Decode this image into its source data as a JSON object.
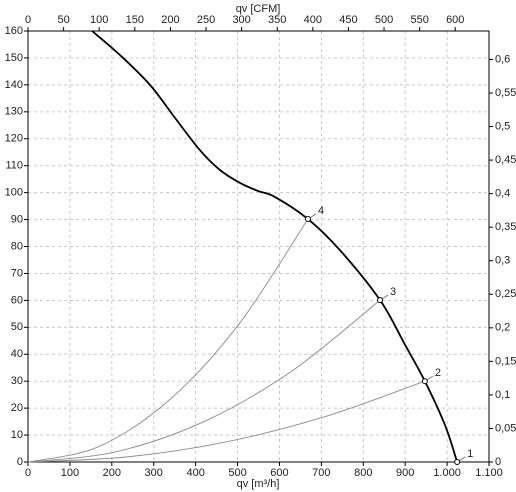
{
  "chart_data": {
    "type": "line",
    "x_label": "qv [m³/h]",
    "x2_label": "qv [CFM]",
    "xlim": [
      0,
      1100
    ],
    "xticks": [
      0,
      100,
      200,
      300,
      400,
      500,
      600,
      700,
      800,
      900,
      {
        "value": 1000,
        "label": "1.000"
      },
      {
        "value": 1100,
        "label": "1.100"
      }
    ],
    "x2lim": [
      0,
      647.4
    ],
    "x2ticks": [
      0,
      50,
      100,
      150,
      200,
      250,
      300,
      350,
      400,
      450,
      500,
      550,
      600
    ],
    "ylim": [
      0,
      160
    ],
    "yticks": [
      0,
      10,
      20,
      30,
      40,
      50,
      60,
      70,
      80,
      90,
      100,
      110,
      120,
      130,
      140,
      150,
      160
    ],
    "y2lim": [
      0,
      0.6424
    ],
    "y2ticks": [
      0,
      {
        "value": 0.05,
        "label": "0,05"
      },
      {
        "value": 0.1,
        "label": "0,1"
      },
      {
        "value": 0.15,
        "label": "0,15"
      },
      {
        "value": 0.2,
        "label": "0,2"
      },
      {
        "value": 0.25,
        "label": "0,25"
      },
      {
        "value": 0.3,
        "label": "0,3"
      },
      {
        "value": 0.35,
        "label": "0,35"
      },
      {
        "value": 0.4,
        "label": "0,4"
      },
      {
        "value": 0.45,
        "label": "0,45"
      },
      {
        "value": 0.5,
        "label": "0,5"
      },
      {
        "value": 0.55,
        "label": "0,55"
      },
      {
        "value": 0.6,
        "label": "0,6"
      }
    ],
    "grid": true,
    "series": [
      {
        "color": "#000000",
        "x": [
          153,
          220,
          291,
          351,
          410,
          458,
          506,
          549,
          589,
          668,
          744,
          840,
          900,
          947,
          995,
          1024
        ],
        "values": [
          160,
          151,
          140,
          127.7,
          115.8,
          108.4,
          103.6,
          100.6,
          98.4,
          90.2,
          78.7,
          60.1,
          43.4,
          30,
          13.7,
          0
        ]
      },
      {
        "color": "#8c8c8c",
        "x": [
          0,
          167,
          334,
          501,
          668
        ],
        "values": [
          0,
          5.6,
          22.6,
          50.7,
          90.2
        ]
      },
      {
        "color": "#8c8c8c",
        "x": [
          0,
          210,
          420,
          630,
          840
        ],
        "values": [
          0,
          3.8,
          15.0,
          33.8,
          60.1
        ]
      },
      {
        "color": "#8c8c8c",
        "x": [
          0,
          237,
          474,
          710,
          947
        ],
        "values": [
          0,
          1.9,
          7.5,
          16.9,
          30
        ]
      }
    ],
    "operating_points": [
      {
        "label": "1",
        "x": 1024,
        "y": 0
      },
      {
        "label": "2",
        "x": 947,
        "y": 30
      },
      {
        "label": "3",
        "x": 840,
        "y": 60.1
      },
      {
        "label": "4",
        "x": 668,
        "y": 90.2
      }
    ]
  }
}
